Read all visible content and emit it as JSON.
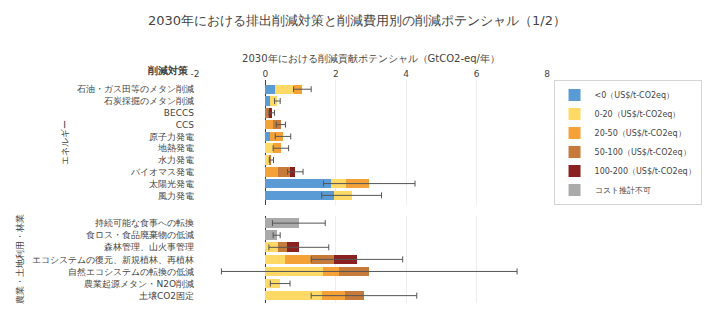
{
  "chart_data": [
    {
      "type": "bar",
      "orientation": "horizontal",
      "stacked": true,
      "title": "2030年における排出削減対策と削減費用別の削減ポテンシャル（1/2）",
      "xlabel": "2030年における削減貢献ポテンシャル（GtCO2-eq/年）",
      "ylabel": "エネルギー",
      "annotations": [
        "削減対策"
      ],
      "categories": [
        "風力発電",
        "太陽光発電",
        "バイオマス発電",
        "水力発電",
        "地熱発電",
        "原子力発電",
        "CCS",
        "BECCS",
        "石炭採掘のメタン削減",
        "石油・ガス田等のメタン削減"
      ],
      "series": [
        {
          "name": "<0（US$/t-CO2eq）",
          "color": "#5B9BD5",
          "values": [
            1.95,
            1.85,
            0.0,
            0.0,
            0.0,
            0.12,
            0.0,
            0.0,
            0.12,
            0.28
          ]
        },
        {
          "name": "0-20（US$/t-CO2eq）",
          "color": "#FFD966",
          "values": [
            0.5,
            0.45,
            0.0,
            0.12,
            0.22,
            0.0,
            0.0,
            0.0,
            0.22,
            0.52
          ]
        },
        {
          "name": "20-50（US$/t-CO2eq）",
          "color": "#F4A137",
          "values": [
            0.0,
            0.65,
            0.35,
            0.0,
            0.22,
            0.38,
            0.22,
            0.0,
            0.0,
            0.25
          ]
        },
        {
          "name": "50-100（US$/t-CO2eq）",
          "color": "#C67B3A",
          "values": [
            0.0,
            0.0,
            0.35,
            0.05,
            0.0,
            0.0,
            0.22,
            0.1,
            0.0,
            0.0
          ]
        },
        {
          "name": "100-200（US$/t-CO2eq）",
          "color": "#8B2020",
          "values": [
            0.0,
            0.0,
            0.15,
            0.0,
            0.0,
            0.0,
            0.0,
            0.08,
            0.0,
            0.0
          ]
        },
        {
          "name": "コスト推計不可",
          "color": "#AAAAAA",
          "values": [
            0.0,
            0.0,
            0.0,
            0.0,
            0.0,
            0.0,
            0.0,
            0.0,
            0.0,
            0.0
          ]
        }
      ],
      "errors": [
        0.85,
        1.3,
        0.22,
        0.06,
        0.22,
        0.22,
        0.13,
        0.08,
        0.08,
        0.25
      ],
      "xlim": [
        -2,
        8
      ],
      "xticks": [
        -2,
        0,
        2,
        4,
        6,
        8
      ],
      "grid": true,
      "legend": "right"
    },
    {
      "type": "bar",
      "orientation": "horizontal",
      "stacked": true,
      "ylabel": "農業・土地利用・林業",
      "categories": [
        "土壌CO2固定",
        "農業起源メタン・N2O削減",
        "自然エコシステムの転換の低減",
        "エコシステムの復元、新規植林、再植林",
        "森林管理、山火事管理",
        "食ロス・食品廃棄物の低減",
        "持続可能な食事への転換"
      ],
      "series": [
        {
          "name": "<0（US$/t-CO2eq）",
          "color": "#5B9BD5",
          "values": [
            0.0,
            0.0,
            0.0,
            0.0,
            0.0,
            0.0,
            0.0
          ]
        },
        {
          "name": "0-20（US$/t-CO2eq）",
          "color": "#FFD966",
          "values": [
            1.6,
            0.42,
            1.65,
            0.55,
            0.35,
            0.0,
            0.0
          ]
        },
        {
          "name": "20-50（US$/t-CO2eq）",
          "color": "#F4A137",
          "values": [
            0.65,
            0.0,
            0.45,
            0.75,
            0.0,
            0.0,
            0.0
          ]
        },
        {
          "name": "50-100（US$/t-CO2eq）",
          "color": "#C67B3A",
          "values": [
            0.55,
            0.0,
            0.85,
            0.65,
            0.25,
            0.0,
            0.0
          ]
        },
        {
          "name": "100-200（US$/t-CO2eq）",
          "color": "#8B2020",
          "values": [
            0.0,
            0.0,
            0.0,
            0.65,
            0.35,
            0.0,
            0.0
          ]
        },
        {
          "name": "コスト推計不可",
          "color": "#AAAAAA",
          "values": [
            0.0,
            0.0,
            0.0,
            0.0,
            0.0,
            0.32,
            0.95
          ]
        }
      ],
      "errors": [
        1.5,
        0.28,
        4.2,
        1.3,
        0.85,
        0.1,
        0.75
      ],
      "xlim": [
        -2,
        8
      ],
      "xticks": [
        -2,
        0,
        2,
        4,
        6,
        8
      ],
      "grid": true,
      "tick_labels": "y"
    }
  ]
}
